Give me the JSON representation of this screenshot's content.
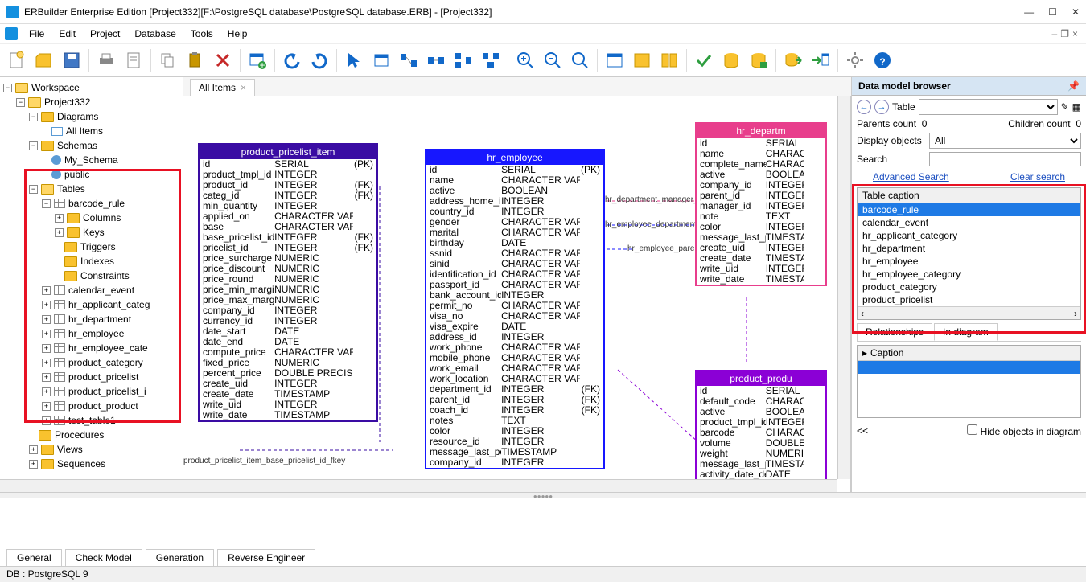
{
  "window": {
    "title": "ERBuilder Enterprise Edition [Project332][F:\\PostgreSQL database\\PostgreSQL database.ERB] - [Project332]"
  },
  "menu": {
    "items": [
      "File",
      "Edit",
      "Project",
      "Database",
      "Tools",
      "Help"
    ]
  },
  "tree": {
    "root": "Workspace",
    "project": "Project332",
    "diagrams": "Diagrams",
    "all_items": "All Items",
    "schemas": "Schemas",
    "my_schema": "My_Schema",
    "public": "public",
    "tables": "Tables",
    "barcode_rule": "barcode_rule",
    "columns": "Columns",
    "keys": "Keys",
    "triggers": "Triggers",
    "indexes": "Indexes",
    "constraints": "Constraints",
    "table_list": [
      "calendar_event",
      "hr_applicant_categ",
      "hr_department",
      "hr_employee",
      "hr_employee_cate",
      "product_category",
      "product_pricelist",
      "product_pricelist_i",
      "product_product",
      "test_table1"
    ],
    "procedures": "Procedures",
    "views": "Views",
    "sequences": "Sequences"
  },
  "tab": {
    "name": "All Items"
  },
  "er": {
    "t1": {
      "name": "product_pricelist_item",
      "color": "#3a0ca3",
      "cols": [
        [
          "id",
          "SERIAL",
          "(PK)"
        ],
        [
          "product_tmpl_id",
          "INTEGER",
          ""
        ],
        [
          "product_id",
          "INTEGER",
          "(FK)"
        ],
        [
          "categ_id",
          "INTEGER",
          "(FK)"
        ],
        [
          "min_quantity",
          "INTEGER",
          ""
        ],
        [
          "applied_on",
          "CHARACTER VARYING",
          ""
        ],
        [
          "base",
          "CHARACTER VARYING",
          ""
        ],
        [
          "base_pricelist_id",
          "INTEGER",
          "(FK)"
        ],
        [
          "pricelist_id",
          "INTEGER",
          "(FK)"
        ],
        [
          "price_surcharge",
          "NUMERIC",
          ""
        ],
        [
          "price_discount",
          "NUMERIC",
          ""
        ],
        [
          "price_round",
          "NUMERIC",
          ""
        ],
        [
          "price_min_margin",
          "NUMERIC",
          ""
        ],
        [
          "price_max_margin",
          "NUMERIC",
          ""
        ],
        [
          "company_id",
          "INTEGER",
          ""
        ],
        [
          "currency_id",
          "INTEGER",
          ""
        ],
        [
          "date_start",
          "DATE",
          ""
        ],
        [
          "date_end",
          "DATE",
          ""
        ],
        [
          "compute_price",
          "CHARACTER VARYING",
          ""
        ],
        [
          "fixed_price",
          "NUMERIC",
          ""
        ],
        [
          "percent_price",
          "DOUBLE PRECISION",
          ""
        ],
        [
          "create_uid",
          "INTEGER",
          ""
        ],
        [
          "create_date",
          "TIMESTAMP",
          ""
        ],
        [
          "write_uid",
          "INTEGER",
          ""
        ],
        [
          "write_date",
          "TIMESTAMP",
          ""
        ]
      ]
    },
    "t2": {
      "name": "hr_employee",
      "color": "#1717ff",
      "cols": [
        [
          "id",
          "SERIAL",
          "(PK)"
        ],
        [
          "name",
          "CHARACTER VARYING",
          ""
        ],
        [
          "active",
          "BOOLEAN",
          ""
        ],
        [
          "address_home_id",
          "INTEGER",
          ""
        ],
        [
          "country_id",
          "INTEGER",
          ""
        ],
        [
          "gender",
          "CHARACTER VARYING",
          ""
        ],
        [
          "marital",
          "CHARACTER VARYING",
          ""
        ],
        [
          "birthday",
          "DATE",
          ""
        ],
        [
          "ssnid",
          "CHARACTER VARYING",
          ""
        ],
        [
          "sinid",
          "CHARACTER VARYING",
          ""
        ],
        [
          "identification_id",
          "CHARACTER VARYING",
          ""
        ],
        [
          "passport_id",
          "CHARACTER VARYING",
          ""
        ],
        [
          "bank_account_id",
          "INTEGER",
          ""
        ],
        [
          "permit_no",
          "CHARACTER VARYING",
          ""
        ],
        [
          "visa_no",
          "CHARACTER VARYING",
          ""
        ],
        [
          "visa_expire",
          "DATE",
          ""
        ],
        [
          "address_id",
          "INTEGER",
          ""
        ],
        [
          "work_phone",
          "CHARACTER VARYING",
          ""
        ],
        [
          "mobile_phone",
          "CHARACTER VARYING",
          ""
        ],
        [
          "work_email",
          "CHARACTER VARYING",
          ""
        ],
        [
          "work_location",
          "CHARACTER VARYING",
          ""
        ],
        [
          "department_id",
          "INTEGER",
          "(FK)"
        ],
        [
          "parent_id",
          "INTEGER",
          "(FK)"
        ],
        [
          "coach_id",
          "INTEGER",
          "(FK)"
        ],
        [
          "notes",
          "TEXT",
          ""
        ],
        [
          "color",
          "INTEGER",
          ""
        ],
        [
          "resource_id",
          "INTEGER",
          ""
        ],
        [
          "message_last_post",
          "TIMESTAMP",
          ""
        ],
        [
          "company_id",
          "INTEGER",
          ""
        ]
      ]
    },
    "t3": {
      "name": "hr_departm",
      "color": "#e83e8c",
      "cols": [
        [
          "id",
          "SERIAL",
          ""
        ],
        [
          "name",
          "CHARACT",
          ""
        ],
        [
          "complete_name",
          "CHARACT",
          ""
        ],
        [
          "active",
          "BOOLEAN",
          ""
        ],
        [
          "company_id",
          "INTEGER",
          ""
        ],
        [
          "parent_id",
          "INTEGER",
          ""
        ],
        [
          "manager_id",
          "INTEGER",
          ""
        ],
        [
          "note",
          "TEXT",
          ""
        ],
        [
          "color",
          "INTEGER",
          ""
        ],
        [
          "message_last_post",
          "TIMESTAM",
          ""
        ],
        [
          "create_uid",
          "INTEGER",
          ""
        ],
        [
          "create_date",
          "TIMESTAM",
          ""
        ],
        [
          "write_uid",
          "INTEGER",
          ""
        ],
        [
          "write_date",
          "TIMESTAM",
          ""
        ]
      ]
    },
    "t4": {
      "name": "product_produ",
      "color": "#8b00d6",
      "cols": [
        [
          "id",
          "SERIAL",
          ""
        ],
        [
          "default_code",
          "CHARACTE",
          ""
        ],
        [
          "active",
          "BOOLEAN",
          ""
        ],
        [
          "product_tmpl_id",
          "INTEGER",
          ""
        ],
        [
          "barcode",
          "CHARACTE",
          ""
        ],
        [
          "volume",
          "DOUBLE PR",
          ""
        ],
        [
          "weight",
          "NUMERIC",
          ""
        ],
        [
          "message_last_post",
          "TIMESTAM",
          ""
        ],
        [
          "activity_date_deadline",
          "DATE",
          ""
        ]
      ]
    },
    "fk1": "hr_department_manager_id_fkey",
    "fk2": "hr_employee_department_id_fkey",
    "fk3": "hr_employee_parent_id_fk",
    "fk4": "product_pricelist_item_base_pricelist_id_fkey"
  },
  "browser": {
    "title": "Data model browser",
    "table_label": "Table",
    "parents": "Parents count",
    "parents_n": "0",
    "children": "Children count",
    "children_n": "0",
    "display": "Display objects",
    "display_val": "All",
    "search": "Search",
    "adv": "Advanced Search",
    "clear": "Clear search",
    "caption_hdr": "Table caption",
    "items": [
      "barcode_rule",
      "calendar_event",
      "hr_applicant_category",
      "hr_department",
      "hr_employee",
      "hr_employee_category",
      "product_category",
      "product_pricelist"
    ],
    "rel_tab": "Relationships",
    "diag_tab": "In diagram",
    "cap": "Caption",
    "back": "<<",
    "hide": "Hide objects in diagram"
  },
  "bottom_tabs": [
    "General",
    "Check Model",
    "Generation",
    "Reverse Engineer"
  ],
  "status": "DB : PostgreSQL 9"
}
